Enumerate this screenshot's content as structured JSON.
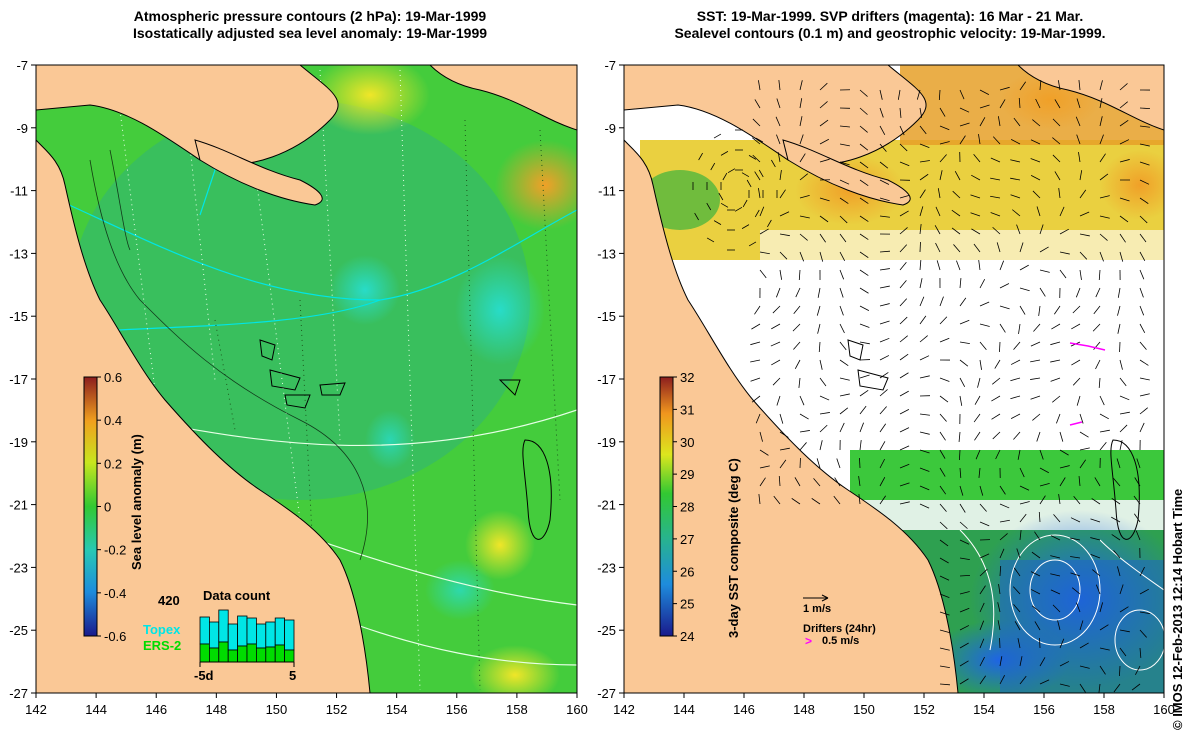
{
  "left_panel": {
    "title_line1": "Atmospheric pressure contours (2 hPa): 19-Mar-1999",
    "title_line2": "Isostatically adjusted sea level anomaly: 19-Mar-1999",
    "colorbar": {
      "label": "Sea level anomaly (m)",
      "ticks": [
        "0.6",
        "0.4",
        "0.2",
        "0",
        "-0.2",
        "-0.4",
        "-0.6"
      ]
    },
    "data_count": {
      "title": "Data count",
      "max_label": "420",
      "topex_label": "Topex",
      "ers_label": "ERS-2",
      "axis_start": "-5d",
      "axis_end": "5"
    }
  },
  "right_panel": {
    "title_line1": "SST: 19-Mar-1999. SVP drifters (magenta): 16 Mar - 21 Mar.",
    "title_line2": "Sealevel contours (0.1 m) and geostrophic velocity: 19-Mar-1999.",
    "colorbar": {
      "label": "3-day SST composite (deg C)",
      "ticks": [
        "32",
        "31",
        "30",
        "29",
        "28",
        "27",
        "26",
        "25",
        "24"
      ]
    },
    "velocity_scale_label": "1 m/s",
    "drifters_label": "Drifters (24hr)",
    "drifter_scale_label": "0.5 m/s"
  },
  "axes": {
    "lat_ticks": [
      "-7",
      "-9",
      "-11",
      "-13",
      "-15",
      "-17",
      "-19",
      "-21",
      "-23",
      "-25",
      "-27"
    ],
    "lon_ticks": [
      "142",
      "144",
      "146",
      "148",
      "150",
      "152",
      "154",
      "156",
      "158",
      "160"
    ]
  },
  "credit": "© IMOS 12-Feb-2013 12:14 Hobart Time",
  "colors": {
    "land": "#fac896",
    "ocean_green": "#3cc83c",
    "cloud": "#ffffff",
    "topex": "#00e6e6",
    "ers2": "#00dc00",
    "drifter": "#ff00ff"
  }
}
